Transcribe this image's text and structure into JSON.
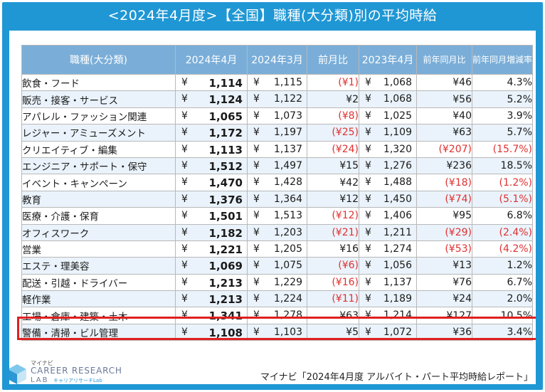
{
  "title": "<2024年4月度>【全国】職種(大分類)別の平均時給",
  "headers": [
    "職種(大分類)",
    "2024年4月",
    "2024年3月",
    "前月比",
    "2023年4月",
    "前年同月比",
    "前年同月増減率"
  ],
  "currency": "¥",
  "rows": [
    {
      "cat": "飲食・フード",
      "apr24": "1,114",
      "mar24": "1,115",
      "mom": "(¥1)",
      "mom_neg": true,
      "apr23": "1,068",
      "yoy": "¥46",
      "yoy_neg": false,
      "rate": "4.3%",
      "rate_neg": false
    },
    {
      "cat": "販売・接客・サービス",
      "apr24": "1,124",
      "mar24": "1,122",
      "mom": "¥2",
      "mom_neg": false,
      "apr23": "1,068",
      "yoy": "¥56",
      "yoy_neg": false,
      "rate": "5.2%",
      "rate_neg": false
    },
    {
      "cat": "アパレル・ファッション関連",
      "apr24": "1,065",
      "mar24": "1,073",
      "mom": "(¥8)",
      "mom_neg": true,
      "apr23": "1,025",
      "yoy": "¥40",
      "yoy_neg": false,
      "rate": "3.9%",
      "rate_neg": false
    },
    {
      "cat": "レジャー・アミューズメント",
      "apr24": "1,172",
      "mar24": "1,197",
      "mom": "(¥25)",
      "mom_neg": true,
      "apr23": "1,109",
      "yoy": "¥63",
      "yoy_neg": false,
      "rate": "5.7%",
      "rate_neg": false
    },
    {
      "cat": "クリエイティブ・編集",
      "apr24": "1,113",
      "mar24": "1,137",
      "mom": "(¥24)",
      "mom_neg": true,
      "apr23": "1,320",
      "yoy": "(¥207)",
      "yoy_neg": true,
      "rate": "(15.7%)",
      "rate_neg": true
    },
    {
      "cat": "エンジニア・サポート・保守",
      "apr24": "1,512",
      "mar24": "1,497",
      "mom": "¥15",
      "mom_neg": false,
      "apr23": "1,276",
      "yoy": "¥236",
      "yoy_neg": false,
      "rate": "18.5%",
      "rate_neg": false
    },
    {
      "cat": "イベント・キャンペーン",
      "apr24": "1,470",
      "mar24": "1,428",
      "mom": "¥42",
      "mom_neg": false,
      "apr23": "1,488",
      "yoy": "(¥18)",
      "yoy_neg": true,
      "rate": "(1.2%)",
      "rate_neg": true
    },
    {
      "cat": "教育",
      "apr24": "1,376",
      "mar24": "1,364",
      "mom": "¥12",
      "mom_neg": false,
      "apr23": "1,450",
      "yoy": "(¥74)",
      "yoy_neg": true,
      "rate": "(5.1%)",
      "rate_neg": true
    },
    {
      "cat": "医療・介護・保育",
      "apr24": "1,501",
      "mar24": "1,513",
      "mom": "(¥12)",
      "mom_neg": true,
      "apr23": "1,406",
      "yoy": "¥95",
      "yoy_neg": false,
      "rate": "6.8%",
      "rate_neg": false
    },
    {
      "cat": "オフィスワーク",
      "apr24": "1,182",
      "mar24": "1,203",
      "mom": "(¥21)",
      "mom_neg": true,
      "apr23": "1,211",
      "yoy": "(¥29)",
      "yoy_neg": true,
      "rate": "(2.4%)",
      "rate_neg": true
    },
    {
      "cat": "営業",
      "apr24": "1,221",
      "mar24": "1,205",
      "mom": "¥16",
      "mom_neg": false,
      "apr23": "1,274",
      "yoy": "(¥53)",
      "yoy_neg": true,
      "rate": "(4.2%)",
      "rate_neg": true
    },
    {
      "cat": "エステ・理美容",
      "apr24": "1,069",
      "mar24": "1,075",
      "mom": "(¥6)",
      "mom_neg": true,
      "apr23": "1,056",
      "yoy": "¥13",
      "yoy_neg": false,
      "rate": "1.2%",
      "rate_neg": false
    },
    {
      "cat": "配送・引越・ドライバー",
      "apr24": "1,213",
      "mar24": "1,229",
      "mom": "(¥16)",
      "mom_neg": true,
      "apr23": "1,137",
      "yoy": "¥76",
      "yoy_neg": false,
      "rate": "6.7%",
      "rate_neg": false
    },
    {
      "cat": "軽作業",
      "apr24": "1,213",
      "mar24": "1,224",
      "mom": "(¥11)",
      "mom_neg": true,
      "apr23": "1,189",
      "yoy": "¥24",
      "yoy_neg": false,
      "rate": "2.0%",
      "rate_neg": false
    },
    {
      "cat": "工場・倉庫・建築・土木",
      "apr24": "1,341",
      "mar24": "1,278",
      "mom": "¥63",
      "mom_neg": false,
      "apr23": "1,214",
      "yoy": "¥127",
      "yoy_neg": false,
      "rate": "10.5%",
      "rate_neg": false,
      "highlighted": true
    },
    {
      "cat": "警備・清掃・ビル管理",
      "apr24": "1,108",
      "mar24": "1,103",
      "mom": "¥5",
      "mom_neg": false,
      "apr23": "1,072",
      "yoy": "¥36",
      "yoy_neg": false,
      "rate": "3.4%",
      "rate_neg": false
    }
  ],
  "logo": {
    "small": "マイナビ",
    "main": "CAREER RESEARCH",
    "sub": "LAB",
    "sub2": "キャリアリサーチLab"
  },
  "source": "マイナビ「2024年4月度 アルバイト・パート平均時給レポート」",
  "colors": {
    "frame": "#1f97d4",
    "header": "#7aaed8",
    "stripe": "#eaf3fb",
    "negative": "#e03030",
    "highlight_border": "#e02020"
  }
}
